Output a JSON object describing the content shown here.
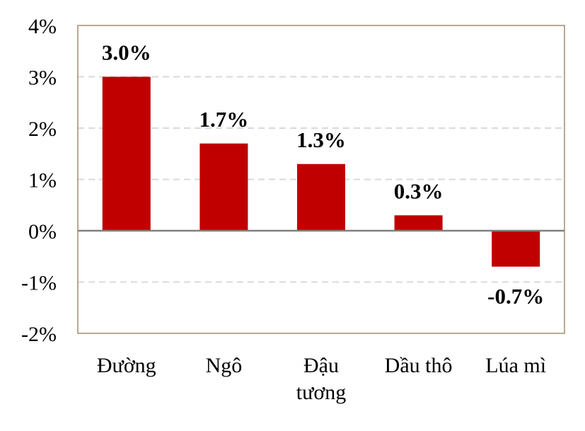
{
  "chart_data": {
    "type": "bar",
    "categories": [
      [
        "Đường"
      ],
      [
        "Ngô"
      ],
      [
        "Đậu",
        "tương"
      ],
      [
        "Dầu thô"
      ],
      [
        "Lúa mì"
      ]
    ],
    "values": [
      3.0,
      1.7,
      1.3,
      0.3,
      -0.7
    ],
    "data_labels": [
      "3.0%",
      "1.7%",
      "1.3%",
      "0.3%",
      "-0.7%"
    ],
    "y_ticks": [
      4,
      3,
      2,
      1,
      0,
      -1,
      -2
    ],
    "y_tick_labels": [
      "4%",
      "3%",
      "2%",
      "1%",
      "0%",
      "-1%",
      "-2%"
    ],
    "ylim": [
      -2,
      4
    ],
    "grid": "horizontal dashed",
    "legend": "none",
    "bar_color": "#C00000",
    "grid_color": "#D9D9D9",
    "axis_color": "#808080",
    "frame_color": "#A08C6E"
  }
}
